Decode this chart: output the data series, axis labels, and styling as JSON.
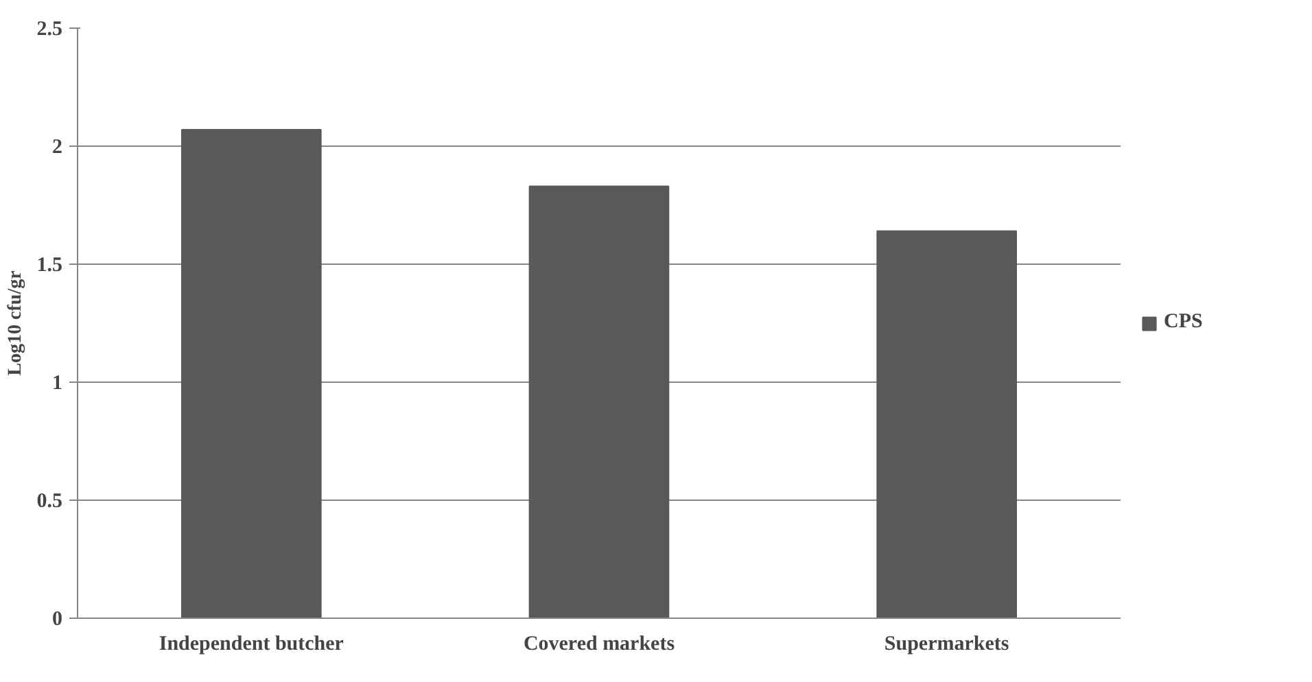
{
  "chart_data": {
    "type": "bar",
    "ylabel": "Log10 cfu/gr",
    "categories": [
      "Independent butcher",
      "Covered markets",
      "Supermarkets"
    ],
    "series": [
      {
        "name": "CPS",
        "color": "#595959",
        "values": [
          2.07,
          1.83,
          1.64
        ]
      }
    ],
    "ylim": [
      0,
      2.5
    ],
    "yticks": [
      0,
      0.5,
      1,
      1.5,
      2,
      2.5
    ],
    "grid": "y",
    "legend": "right"
  }
}
